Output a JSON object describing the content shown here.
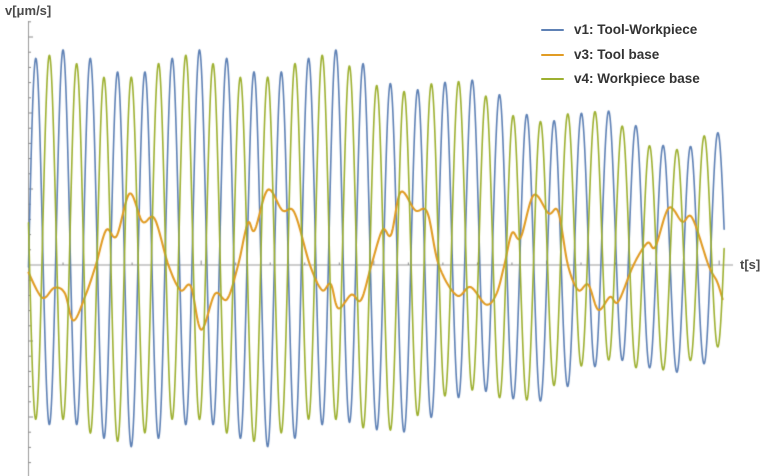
{
  "figure": {
    "background": "#ffffff",
    "axis_color": "#9b9b9b",
    "tick_color": "#8a8a8a",
    "tick_label_color": "#5f5f5f",
    "axis_title_color": "#4a4a4a"
  },
  "chart_data": {
    "type": "line",
    "title": "",
    "xlabel": "t[s]",
    "ylabel": "v[μm/s]",
    "xlim": [
      0,
      207.5
    ],
    "ylim": [
      -277,
      322
    ],
    "x_ticks": [
      50,
      100,
      150,
      200
    ],
    "x_minor_step": 10,
    "y_ticks": [
      300,
      200,
      100,
      -100,
      -200
    ],
    "y_minor_step": 20,
    "grid": false,
    "legend_position": "top-right",
    "t_end": 201.5,
    "sample_step": 0.08,
    "series": [
      {
        "name": "v1: Tool-Workpiece",
        "color": "#5E81B5",
        "line_width": 1.6,
        "model": {
          "kind": "modulated_sine",
          "carrier_period": 7.9,
          "carrier_phase": -0.1,
          "amp": 245,
          "mod_period": 39.5,
          "offset_base": 22,
          "offset_amp": 16,
          "offset_t0": 10,
          "decay_start": 90,
          "decay_end": 185,
          "decay_amount": 0.4
        }
      },
      {
        "name": "v3: Tool base",
        "color": "#E19C24",
        "line_width": 2.1,
        "points": [
          [
            0,
            -10
          ],
          [
            4,
            -43
          ],
          [
            7.5,
            -30
          ],
          [
            10.5,
            -37
          ],
          [
            13,
            -73
          ],
          [
            16.5,
            -40
          ],
          [
            19.5,
            0
          ],
          [
            22.5,
            46
          ],
          [
            25.5,
            38
          ],
          [
            29.3,
            94
          ],
          [
            33,
            57
          ],
          [
            36.5,
            61
          ],
          [
            40.5,
            0
          ],
          [
            44,
            -33
          ],
          [
            47,
            -28
          ],
          [
            50,
            -85
          ],
          [
            54,
            -38
          ],
          [
            57.5,
            -45
          ],
          [
            60.7,
            0
          ],
          [
            63.5,
            55
          ],
          [
            65.5,
            46
          ],
          [
            69.3,
            99
          ],
          [
            73.5,
            72
          ],
          [
            77,
            69
          ],
          [
            81.5,
            0
          ],
          [
            85,
            -33
          ],
          [
            87.5,
            -25
          ],
          [
            89.7,
            -57
          ],
          [
            93.5,
            -39
          ],
          [
            96.3,
            -46
          ],
          [
            99.3,
            0
          ],
          [
            102.5,
            46
          ],
          [
            105,
            40
          ],
          [
            107.8,
            96
          ],
          [
            112,
            72
          ],
          [
            115.5,
            69
          ],
          [
            118.8,
            0
          ],
          [
            124,
            -40
          ],
          [
            128,
            -29
          ],
          [
            132.5,
            -52
          ],
          [
            135.5,
            -38
          ],
          [
            137.8,
            0
          ],
          [
            140,
            42
          ],
          [
            142.5,
            36
          ],
          [
            146.3,
            92
          ],
          [
            150.6,
            68
          ],
          [
            153.4,
            70
          ],
          [
            156.2,
            0
          ],
          [
            159.2,
            -33
          ],
          [
            162.1,
            -26
          ],
          [
            165,
            -59
          ],
          [
            168.4,
            -42
          ],
          [
            170.8,
            -48
          ],
          [
            175.2,
            0
          ],
          [
            179.2,
            29
          ],
          [
            181.5,
            24
          ],
          [
            185.4,
            75
          ],
          [
            189.3,
            57
          ],
          [
            192.2,
            62
          ],
          [
            196.9,
            0
          ],
          [
            199.4,
            -22
          ],
          [
            201,
            -45
          ]
        ]
      },
      {
        "name": "v4: Workpiece base",
        "color": "#9DB030",
        "line_width": 1.6,
        "model": {
          "kind": "modulated_sine",
          "carrier_period": 7.9,
          "carrier_phase": 3.04,
          "amp": 238,
          "mod_period": 39.5,
          "offset_base": 22,
          "offset_amp": 16,
          "offset_t0": 6,
          "decay_start": 90,
          "decay_end": 185,
          "decay_amount": 0.4
        }
      }
    ]
  },
  "legend": {
    "items": [
      {
        "label": "v1: Tool-Workpiece",
        "color": "#5E81B5"
      },
      {
        "label": "v3: Tool base",
        "color": "#E19C24"
      },
      {
        "label": "v4: Workpiece base",
        "color": "#9DB030"
      }
    ]
  }
}
